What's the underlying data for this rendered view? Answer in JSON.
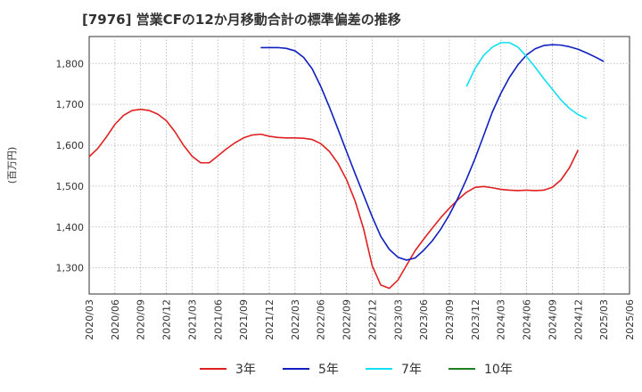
{
  "header": {
    "title": "[7976]  営業CFの12か月移動合計の標準偏差の推移"
  },
  "chart_data": {
    "type": "line",
    "title": "[7976]  営業CFの12か月移動合計の標準偏差の推移",
    "ylabel": "(百万円)",
    "xlabel": "",
    "ylim": [
      1236,
      1866
    ],
    "yticks": [
      1300,
      1400,
      1500,
      1600,
      1700,
      1800
    ],
    "ytick_labels": [
      "1,300",
      "1,400",
      "1,500",
      "1,600",
      "1,700",
      "1,800"
    ],
    "x_ticks": [
      "2020/03",
      "2020/06",
      "2020/09",
      "2020/12",
      "2021/03",
      "2021/06",
      "2021/09",
      "2021/12",
      "2022/03",
      "2022/06",
      "2022/09",
      "2022/12",
      "2023/03",
      "2023/06",
      "2023/09",
      "2023/12",
      "2024/03",
      "2024/06",
      "2024/09",
      "2024/12",
      "2025/03",
      "2025/06"
    ],
    "grid": true,
    "legend_position": "bottom",
    "series": [
      {
        "name": "3年",
        "color": "#e02020",
        "start": "2020/03",
        "values": [
          1572,
          1592,
          1620,
          1651,
          1673,
          1685,
          1688,
          1685,
          1676,
          1660,
          1633,
          1600,
          1573,
          1557,
          1557,
          1574,
          1591,
          1606,
          1618,
          1625,
          1627,
          1622,
          1619,
          1618,
          1618,
          1617,
          1614,
          1604,
          1585,
          1556,
          1516,
          1464,
          1395,
          1305,
          1258,
          1250,
          1270,
          1306,
          1342,
          1370,
          1397,
          1423,
          1446,
          1467,
          1485,
          1497,
          1499,
          1496,
          1492,
          1490,
          1489,
          1490,
          1489,
          1490,
          1497,
          1515,
          1545,
          1588
        ]
      },
      {
        "name": "5年",
        "color": "#1020c0",
        "start": "2021/11",
        "values": [
          1839,
          1839,
          1839,
          1837,
          1831,
          1815,
          1787,
          1744,
          1694,
          1640,
          1585,
          1531,
          1478,
          1425,
          1377,
          1345,
          1326,
          1319,
          1324,
          1343,
          1366,
          1395,
          1430,
          1471,
          1517,
          1568,
          1624,
          1681,
          1727,
          1766,
          1797,
          1821,
          1836,
          1844,
          1846,
          1845,
          1841,
          1835,
          1826,
          1816,
          1805
        ]
      },
      {
        "name": "7年",
        "color": "#10e0f0",
        "start": "2023/11",
        "values": [
          1744,
          1788,
          1820,
          1840,
          1851,
          1851,
          1840,
          1817,
          1791,
          1763,
          1737,
          1711,
          1690,
          1675,
          1665
        ]
      },
      {
        "name": "10年",
        "color": "#208020",
        "start": "2024/12",
        "values": []
      }
    ]
  }
}
